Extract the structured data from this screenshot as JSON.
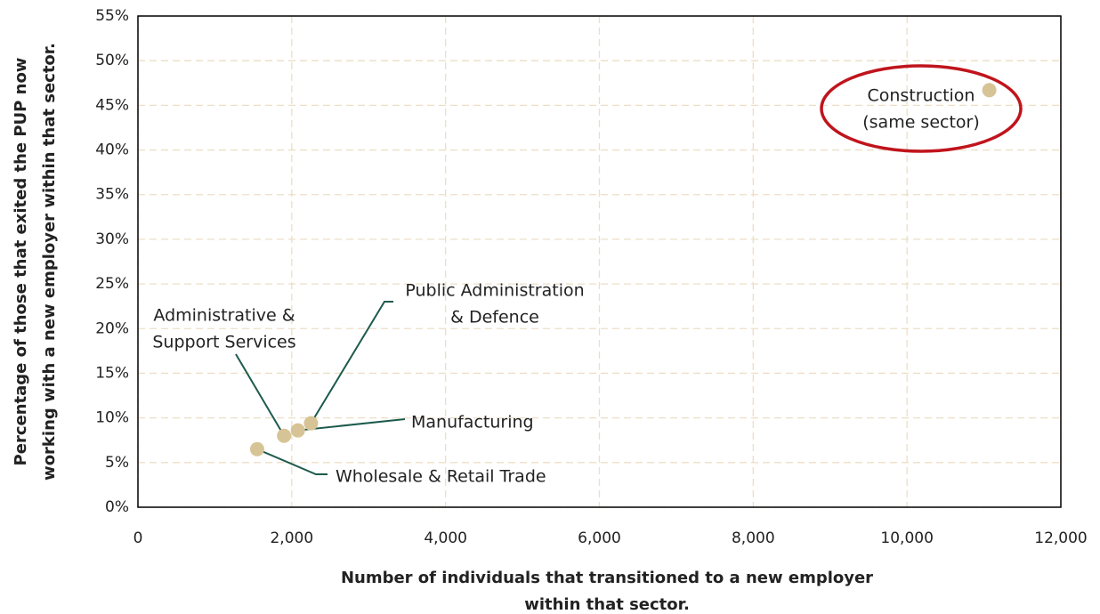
{
  "chart_data": {
    "type": "scatter",
    "x_label": [
      "Number of individuals that transitioned to a new employer",
      "within that sector."
    ],
    "y_label": [
      "Percentage of those that exited the PUP now",
      "working with a new employer within that sector."
    ],
    "labels": [
      [
        "Wholesale & Retail Trade"
      ],
      [
        "Administrative &",
        "Support Services"
      ],
      [
        "Manufacturing"
      ],
      [
        "Public Administration",
        "& Defence"
      ],
      [
        "Construction",
        "(same sector)"
      ]
    ],
    "x": [
      1550,
      1900,
      2080,
      2250,
      11070
    ],
    "values": [
      6.5,
      8,
      8.6,
      9.4,
      46.7
    ],
    "color": "#d7c496",
    "xlim": [
      0,
      12000
    ],
    "xticks": [
      0,
      {
        "value": 2000,
        "label": "2,000"
      },
      {
        "value": 4000,
        "label": "4,000"
      },
      {
        "value": 6000,
        "label": "6,000"
      },
      {
        "value": 8000,
        "label": "8,000"
      },
      {
        "value": 10000,
        "label": "10,000"
      },
      {
        "value": 12000,
        "label": "12,000"
      }
    ],
    "ylim": [
      0,
      55
    ],
    "yticks": [
      {
        "value": 0,
        "label": "0%"
      },
      {
        "value": 5,
        "label": "5%"
      },
      {
        "value": 10,
        "label": "10%"
      },
      {
        "value": 15,
        "label": "15%"
      },
      {
        "value": 20,
        "label": "20%"
      },
      {
        "value": 25,
        "label": "25%"
      },
      {
        "value": 30,
        "label": "30%"
      },
      {
        "value": 35,
        "label": "35%"
      },
      {
        "value": 40,
        "label": "40%"
      },
      {
        "value": 45,
        "label": "45%"
      },
      {
        "value": 50,
        "label": "50%"
      },
      {
        "value": 55,
        "label": "55%"
      }
    ],
    "grid": true
  }
}
